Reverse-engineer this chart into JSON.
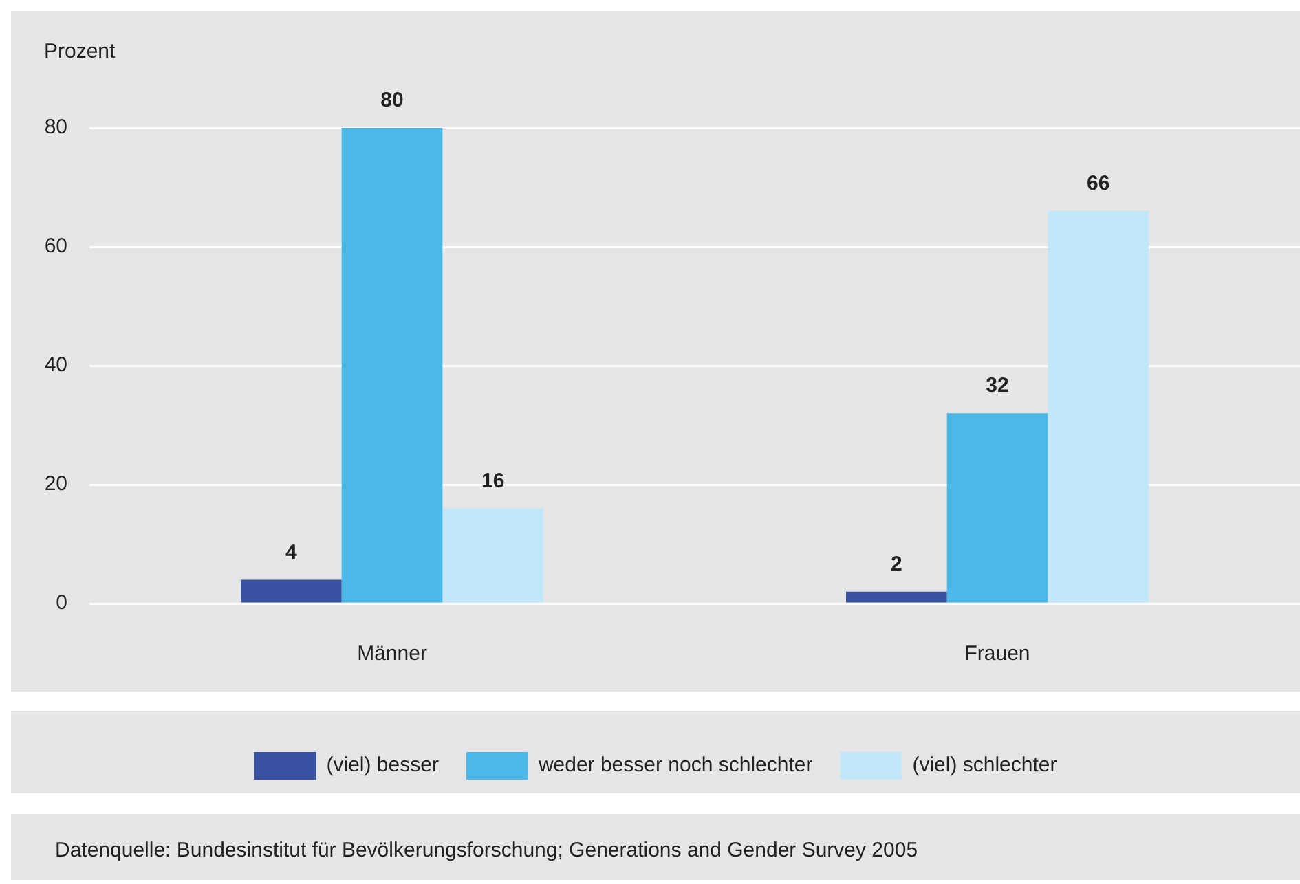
{
  "chart_data": {
    "type": "bar",
    "ylabel": "Prozent",
    "categories": [
      "Männer",
      "Frauen"
    ],
    "series": [
      {
        "name": "(viel) besser",
        "color": "#3a52a3",
        "values": [
          4,
          2
        ]
      },
      {
        "name": "weder besser noch schlechter",
        "color": "#4cb8e8",
        "values": [
          80,
          32
        ]
      },
      {
        "name": "(viel) schlechter",
        "color": "#c2e7f9",
        "values": [
          16,
          66
        ]
      }
    ],
    "ylim": [
      0,
      80
    ],
    "yticks": [
      0,
      20,
      40,
      60,
      80
    ],
    "grid": "y",
    "legend": "bottom",
    "data_labels": true,
    "annotations": [
      "Datenquelle: Bundesinstitut für Bevölkerungsforschung; Generations and Gender Survey 2005"
    ]
  }
}
